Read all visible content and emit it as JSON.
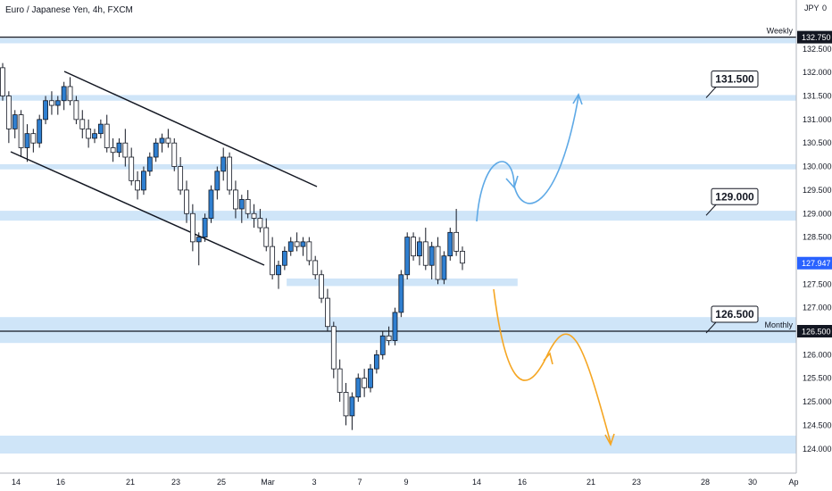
{
  "header": {
    "symbol_title": "Euro / Japanese Yen, 4h, FXCM",
    "currency": "JPY",
    "currency_suffix": "0"
  },
  "chart_data": {
    "type": "candlestick",
    "title": "Euro / Japanese Yen, 4h, FXCM",
    "ylim": [
      123.8,
      133.0
    ],
    "y_ticks": [
      "132.500",
      "132.000",
      "131.500",
      "131.000",
      "130.500",
      "130.000",
      "129.500",
      "129.000",
      "128.500",
      "128.000",
      "127.500",
      "127.000",
      "126.500",
      "126.000",
      "125.500",
      "125.000",
      "124.500",
      "124.000"
    ],
    "x_ticks": [
      "14",
      "16",
      "21",
      "23",
      "25",
      "Mar",
      "3",
      "7",
      "9",
      "14",
      "16",
      "21",
      "23",
      "28",
      "30",
      "Ap"
    ],
    "price_badges": [
      {
        "label": "132.750",
        "value": 132.75,
        "bg": "#131722",
        "fg": "#ffffff"
      },
      {
        "label": "127.947",
        "value": 127.947,
        "bg": "#2962ff",
        "fg": "#ffffff"
      },
      {
        "label": "126.500",
        "value": 126.5,
        "bg": "#131722",
        "fg": "#ffffff"
      }
    ],
    "horizontal_lines": [
      {
        "value": 132.75,
        "note": "Weekly"
      },
      {
        "value": 126.5,
        "note": "Monthly"
      }
    ],
    "zones": [
      {
        "from": 132.62,
        "to": 132.73,
        "x_end": 1.0
      },
      {
        "from": 131.4,
        "to": 131.52,
        "x_end": 1.0
      },
      {
        "from": 129.94,
        "to": 130.05,
        "x_end": 1.0
      },
      {
        "from": 128.85,
        "to": 129.06,
        "x_end": 1.0
      },
      {
        "from": 127.46,
        "to": 127.62,
        "x_start": 0.36,
        "x_end": 0.65
      },
      {
        "from": 126.25,
        "to": 126.8,
        "x_end": 1.0
      },
      {
        "from": 123.9,
        "to": 124.28,
        "x_end": 1.0
      }
    ],
    "callouts": [
      {
        "label": "131.500",
        "value": 131.5
      },
      {
        "label": "129.000",
        "value": 129.0
      },
      {
        "label": "126.500",
        "value": 126.5
      }
    ],
    "candles": [
      [
        132.1,
        132.2,
        131.4,
        131.5
      ],
      [
        131.5,
        131.6,
        130.5,
        130.8
      ],
      [
        130.8,
        131.2,
        130.6,
        131.1
      ],
      [
        131.1,
        131.2,
        130.2,
        130.4
      ],
      [
        130.4,
        130.9,
        130.1,
        130.7
      ],
      [
        130.7,
        130.8,
        130.3,
        130.5
      ],
      [
        130.5,
        131.1,
        130.4,
        131.0
      ],
      [
        131.0,
        131.5,
        130.9,
        131.4
      ],
      [
        131.4,
        131.6,
        131.1,
        131.3
      ],
      [
        131.3,
        131.5,
        131.1,
        131.4
      ],
      [
        131.4,
        131.8,
        131.2,
        131.7
      ],
      [
        131.7,
        131.9,
        131.3,
        131.4
      ],
      [
        131.4,
        131.5,
        130.9,
        131.0
      ],
      [
        131.0,
        131.2,
        130.6,
        130.8
      ],
      [
        130.8,
        131.0,
        130.4,
        130.6
      ],
      [
        130.6,
        130.8,
        130.5,
        130.7
      ],
      [
        130.7,
        131.0,
        130.6,
        130.9
      ],
      [
        130.9,
        131.1,
        130.3,
        130.4
      ],
      [
        130.4,
        130.6,
        130.1,
        130.3
      ],
      [
        130.3,
        130.6,
        130.2,
        130.5
      ],
      [
        130.5,
        130.8,
        130.0,
        130.2
      ],
      [
        130.2,
        130.4,
        129.6,
        129.7
      ],
      [
        129.7,
        129.9,
        129.3,
        129.5
      ],
      [
        129.5,
        130.0,
        129.4,
        129.9
      ],
      [
        129.9,
        130.3,
        129.8,
        130.2
      ],
      [
        130.2,
        130.6,
        130.1,
        130.5
      ],
      [
        130.5,
        130.7,
        130.3,
        130.6
      ],
      [
        130.6,
        130.8,
        130.4,
        130.5
      ],
      [
        130.5,
        130.6,
        129.9,
        130.0
      ],
      [
        130.0,
        130.2,
        129.4,
        129.5
      ],
      [
        129.5,
        129.7,
        128.8,
        129.0
      ],
      [
        129.0,
        129.2,
        128.2,
        128.4
      ],
      [
        128.4,
        128.6,
        127.9,
        128.5
      ],
      [
        128.5,
        129.0,
        128.4,
        128.9
      ],
      [
        128.9,
        129.6,
        128.8,
        129.5
      ],
      [
        129.5,
        130.0,
        129.3,
        129.9
      ],
      [
        129.9,
        130.4,
        129.7,
        130.2
      ],
      [
        130.2,
        130.3,
        129.4,
        129.5
      ],
      [
        129.5,
        129.7,
        128.9,
        129.1
      ],
      [
        129.1,
        129.4,
        128.8,
        129.3
      ],
      [
        129.3,
        129.5,
        128.9,
        129.0
      ],
      [
        129.0,
        129.2,
        128.7,
        128.9
      ],
      [
        128.9,
        129.1,
        128.6,
        128.7
      ],
      [
        128.7,
        128.9,
        128.2,
        128.3
      ],
      [
        128.3,
        128.5,
        127.6,
        127.7
      ],
      [
        127.7,
        128.0,
        127.4,
        127.9
      ],
      [
        127.9,
        128.3,
        127.8,
        128.2
      ],
      [
        128.2,
        128.5,
        128.1,
        128.4
      ],
      [
        128.4,
        128.6,
        128.2,
        128.3
      ],
      [
        128.3,
        128.5,
        128.1,
        128.4
      ],
      [
        128.4,
        128.5,
        127.9,
        128.0
      ],
      [
        128.0,
        128.1,
        127.6,
        127.7
      ],
      [
        127.7,
        127.8,
        127.1,
        127.2
      ],
      [
        127.2,
        127.4,
        126.5,
        126.6
      ],
      [
        126.6,
        126.7,
        125.5,
        125.7
      ],
      [
        125.7,
        125.9,
        125.0,
        125.2
      ],
      [
        125.2,
        125.4,
        124.5,
        124.7
      ],
      [
        124.7,
        125.2,
        124.4,
        125.1
      ],
      [
        125.1,
        125.6,
        125.0,
        125.5
      ],
      [
        125.5,
        125.7,
        125.1,
        125.3
      ],
      [
        125.3,
        125.8,
        125.2,
        125.7
      ],
      [
        125.7,
        126.1,
        125.6,
        126.0
      ],
      [
        126.0,
        126.5,
        125.9,
        126.4
      ],
      [
        126.4,
        126.6,
        126.2,
        126.3
      ],
      [
        126.3,
        127.0,
        126.2,
        126.9
      ],
      [
        126.9,
        127.8,
        126.8,
        127.7
      ],
      [
        127.7,
        128.6,
        127.6,
        128.5
      ],
      [
        128.5,
        128.6,
        128.0,
        128.1
      ],
      [
        128.1,
        128.5,
        127.9,
        128.4
      ],
      [
        128.4,
        128.7,
        127.8,
        127.9
      ],
      [
        127.9,
        128.4,
        127.6,
        128.3
      ],
      [
        128.3,
        128.5,
        127.5,
        127.6
      ],
      [
        127.6,
        128.2,
        127.5,
        128.1
      ],
      [
        128.1,
        128.7,
        128.0,
        128.6
      ],
      [
        128.6,
        129.1,
        128.1,
        128.2
      ],
      [
        128.2,
        128.3,
        127.8,
        127.947
      ]
    ]
  }
}
